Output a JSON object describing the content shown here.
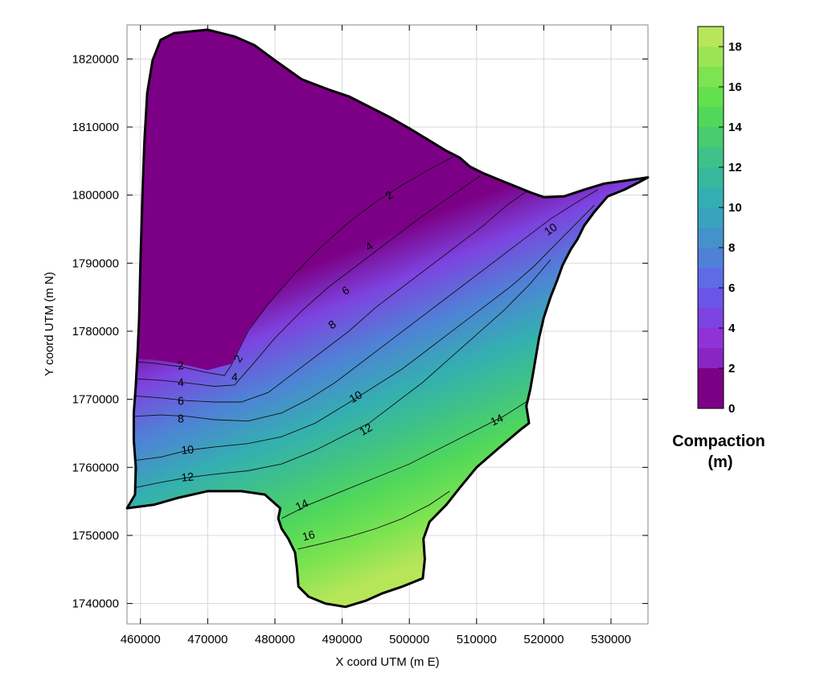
{
  "chart_data": {
    "type": "contour",
    "xlabel": "X coord UTM (m E)",
    "ylabel": "Y coord UTM (m N)",
    "xlim": [
      458000,
      535500
    ],
    "ylim": [
      1737000,
      1825000
    ],
    "x_ticks": [
      460000,
      470000,
      480000,
      490000,
      500000,
      510000,
      520000,
      530000
    ],
    "x_tick_labels": [
      "460000",
      "470000",
      "480000",
      "490000",
      "500000",
      "510000",
      "520000",
      "530000"
    ],
    "y_ticks": [
      1740000,
      1750000,
      1760000,
      1770000,
      1780000,
      1790000,
      1800000,
      1810000,
      1820000
    ],
    "y_tick_labels": [
      "1740000",
      "1750000",
      "1760000",
      "1770000",
      "1780000",
      "1790000",
      "1800000",
      "1810000",
      "1820000"
    ],
    "colorbar": {
      "title_line1": "Compaction",
      "title_line2": "(m)",
      "min": 0,
      "max": 19,
      "levels": [
        0,
        1,
        2,
        3,
        4,
        5,
        6,
        7,
        8,
        9,
        10,
        11,
        12,
        13,
        14,
        15,
        16,
        17,
        18,
        19
      ],
      "tick_values": [
        0,
        2,
        4,
        6,
        8,
        10,
        12,
        14,
        16,
        18
      ],
      "tick_labels": [
        "0",
        "2",
        "4",
        "6",
        "8",
        "10",
        "12",
        "14",
        "16",
        "18"
      ],
      "colors": [
        "#7c0086",
        "#7c0086",
        "#8a25c2",
        "#8f33d8",
        "#7d43e0",
        "#6a55e8",
        "#5d6ce6",
        "#4f82d6",
        "#4392c9",
        "#39a3be",
        "#34afb1",
        "#38b89c",
        "#3fc287",
        "#47cc70",
        "#51d85a",
        "#63e04e",
        "#7ee350",
        "#9be555",
        "#b8e65a",
        "#d4e463"
      ]
    },
    "boundary": [
      [
        458000,
        1754000
      ],
      [
        459200,
        1756000
      ],
      [
        459300,
        1760000
      ],
      [
        459000,
        1764000
      ],
      [
        459000,
        1768000
      ],
      [
        459300,
        1772000
      ],
      [
        459600,
        1777500
      ],
      [
        459800,
        1782000
      ],
      [
        460000,
        1790000
      ],
      [
        460300,
        1800000
      ],
      [
        460600,
        1808000
      ],
      [
        461000,
        1815000
      ],
      [
        461800,
        1819800
      ],
      [
        463000,
        1822800
      ],
      [
        465000,
        1823800
      ],
      [
        470000,
        1824300
      ],
      [
        474000,
        1823300
      ],
      [
        477000,
        1822000
      ],
      [
        480000,
        1819800
      ],
      [
        484000,
        1817000
      ],
      [
        488000,
        1815500
      ],
      [
        491000,
        1814500
      ],
      [
        494000,
        1813000
      ],
      [
        497000,
        1811500
      ],
      [
        500000,
        1809800
      ],
      [
        503000,
        1808000
      ],
      [
        505500,
        1806500
      ],
      [
        507500,
        1805500
      ],
      [
        509000,
        1804200
      ],
      [
        510800,
        1803300
      ],
      [
        514000,
        1802000
      ],
      [
        518000,
        1800400
      ],
      [
        520000,
        1799700
      ],
      [
        523000,
        1799800
      ],
      [
        526000,
        1800800
      ],
      [
        529000,
        1801700
      ],
      [
        532000,
        1802100
      ],
      [
        535500,
        1802600
      ],
      [
        534000,
        1801800
      ],
      [
        532000,
        1800800
      ],
      [
        529500,
        1799800
      ],
      [
        527500,
        1797500
      ],
      [
        526000,
        1795500
      ],
      [
        525000,
        1793500
      ],
      [
        524000,
        1792000
      ],
      [
        522800,
        1789700
      ],
      [
        522000,
        1787500
      ],
      [
        521000,
        1785000
      ],
      [
        520000,
        1782000
      ],
      [
        519300,
        1779000
      ],
      [
        518700,
        1775500
      ],
      [
        518000,
        1771500
      ],
      [
        517400,
        1769000
      ],
      [
        517800,
        1766500
      ],
      [
        516500,
        1765500
      ],
      [
        513500,
        1763000
      ],
      [
        510000,
        1760000
      ],
      [
        507500,
        1757000
      ],
      [
        505500,
        1754500
      ],
      [
        503000,
        1752000
      ],
      [
        502100,
        1749500
      ],
      [
        502300,
        1746500
      ],
      [
        502000,
        1743700
      ],
      [
        499000,
        1742500
      ],
      [
        496000,
        1741500
      ],
      [
        493500,
        1740400
      ],
      [
        490500,
        1739500
      ],
      [
        487500,
        1740000
      ],
      [
        485000,
        1741000
      ],
      [
        483500,
        1742500
      ],
      [
        483300,
        1745000
      ],
      [
        483000,
        1747500
      ],
      [
        482000,
        1749500
      ],
      [
        481000,
        1751000
      ],
      [
        480500,
        1752500
      ],
      [
        480800,
        1754000
      ],
      [
        478500,
        1756000
      ],
      [
        475000,
        1756500
      ],
      [
        470000,
        1756500
      ],
      [
        465500,
        1755500
      ],
      [
        462000,
        1754500
      ],
      [
        458000,
        1754000
      ]
    ],
    "contour_lines": [
      {
        "level": 2,
        "points": [
          [
            459500,
            1775500
          ],
          [
            462000,
            1775300
          ],
          [
            466000,
            1774800
          ],
          [
            470000,
            1773900
          ],
          [
            472500,
            1773500
          ],
          [
            473500,
            1775000
          ],
          [
            476000,
            1780000
          ],
          [
            479000,
            1784000
          ],
          [
            483000,
            1788500
          ],
          [
            487000,
            1792500
          ],
          [
            491000,
            1796000
          ],
          [
            495000,
            1799000
          ],
          [
            499000,
            1801500
          ],
          [
            503000,
            1803800
          ],
          [
            506500,
            1805600
          ]
        ]
      },
      {
        "level": 4,
        "points": [
          [
            459400,
            1773000
          ],
          [
            463000,
            1772800
          ],
          [
            467000,
            1772400
          ],
          [
            471000,
            1771900
          ],
          [
            474000,
            1772100
          ],
          [
            477000,
            1775500
          ],
          [
            480000,
            1779000
          ],
          [
            484000,
            1783000
          ],
          [
            488000,
            1786500
          ],
          [
            492000,
            1789500
          ],
          [
            496000,
            1792500
          ],
          [
            500000,
            1795500
          ],
          [
            503500,
            1798000
          ],
          [
            507000,
            1800400
          ],
          [
            510500,
            1802800
          ]
        ]
      },
      {
        "level": 6,
        "points": [
          [
            459300,
            1770500
          ],
          [
            463000,
            1770200
          ],
          [
            467000,
            1769800
          ],
          [
            471000,
            1769600
          ],
          [
            475000,
            1769600
          ],
          [
            479000,
            1771000
          ],
          [
            483000,
            1774000
          ],
          [
            487000,
            1777000
          ],
          [
            491000,
            1780000
          ],
          [
            495000,
            1783500
          ],
          [
            499000,
            1786500
          ],
          [
            503000,
            1789500
          ],
          [
            507000,
            1792500
          ],
          [
            511000,
            1795500
          ],
          [
            514500,
            1798500
          ],
          [
            517500,
            1800600
          ]
        ]
      },
      {
        "level": 8,
        "points": [
          [
            459200,
            1767500
          ],
          [
            463000,
            1767700
          ],
          [
            467000,
            1767500
          ],
          [
            471000,
            1767000
          ],
          [
            476000,
            1766800
          ],
          [
            481000,
            1768000
          ],
          [
            485000,
            1770000
          ],
          [
            489000,
            1772500
          ],
          [
            493000,
            1775500
          ],
          [
            497000,
            1778500
          ],
          [
            501000,
            1781500
          ],
          [
            505000,
            1784500
          ],
          [
            509000,
            1787500
          ],
          [
            513000,
            1790500
          ],
          [
            517000,
            1793500
          ],
          [
            521000,
            1796500
          ],
          [
            525000,
            1799000
          ],
          [
            528000,
            1800800
          ]
        ]
      },
      {
        "level": 10,
        "points": [
          [
            459000,
            1761000
          ],
          [
            463000,
            1761500
          ],
          [
            467000,
            1762500
          ],
          [
            471000,
            1763000
          ],
          [
            476000,
            1763500
          ],
          [
            481000,
            1764500
          ],
          [
            486000,
            1766500
          ],
          [
            491000,
            1769500
          ],
          [
            495000,
            1772000
          ],
          [
            499000,
            1774500
          ],
          [
            503000,
            1777500
          ],
          [
            507000,
            1780500
          ],
          [
            511000,
            1783500
          ],
          [
            515000,
            1786500
          ],
          [
            518500,
            1789500
          ],
          [
            521500,
            1792500
          ],
          [
            524500,
            1795500
          ],
          [
            527500,
            1798500
          ]
        ]
      },
      {
        "level": 12,
        "points": [
          [
            459100,
            1757000
          ],
          [
            463000,
            1757800
          ],
          [
            467000,
            1758500
          ],
          [
            471000,
            1759000
          ],
          [
            476000,
            1759500
          ],
          [
            481000,
            1760500
          ],
          [
            486000,
            1762500
          ],
          [
            490000,
            1764500
          ],
          [
            494000,
            1766500
          ],
          [
            498000,
            1769500
          ],
          [
            502000,
            1772500
          ],
          [
            506000,
            1776000
          ],
          [
            510000,
            1779500
          ],
          [
            514000,
            1783000
          ],
          [
            518000,
            1787000
          ],
          [
            521000,
            1790500
          ]
        ]
      },
      {
        "level": 14,
        "points": [
          [
            481000,
            1752500
          ],
          [
            485000,
            1754500
          ],
          [
            490000,
            1756500
          ],
          [
            495000,
            1758500
          ],
          [
            500000,
            1760500
          ],
          [
            505000,
            1763000
          ],
          [
            510000,
            1765500
          ],
          [
            514000,
            1767500
          ],
          [
            518000,
            1770000
          ]
        ]
      },
      {
        "level": 16,
        "points": [
          [
            483400,
            1748000
          ],
          [
            487000,
            1748800
          ],
          [
            491000,
            1749800
          ],
          [
            495000,
            1751000
          ],
          [
            499000,
            1752500
          ],
          [
            503000,
            1754500
          ],
          [
            506000,
            1756500
          ]
        ]
      }
    ],
    "contour_labels": [
      {
        "text": "2",
        "x": 466000,
        "y": 1775000,
        "angle": -5
      },
      {
        "text": "2",
        "x": 474500,
        "y": 1776000,
        "angle": -60
      },
      {
        "text": "2",
        "x": 497000,
        "y": 1800000,
        "angle": -35
      },
      {
        "text": "4",
        "x": 466000,
        "y": 1772500,
        "angle": -3
      },
      {
        "text": "4",
        "x": 474000,
        "y": 1773300,
        "angle": 0
      },
      {
        "text": "4",
        "x": 494000,
        "y": 1792500,
        "angle": -35
      },
      {
        "text": "6",
        "x": 466000,
        "y": 1769800,
        "angle": -2
      },
      {
        "text": "6",
        "x": 490500,
        "y": 1786000,
        "angle": -35
      },
      {
        "text": "8",
        "x": 466000,
        "y": 1767200,
        "angle": -2
      },
      {
        "text": "8",
        "x": 488500,
        "y": 1781000,
        "angle": -35
      },
      {
        "text": "10",
        "x": 467000,
        "y": 1762600,
        "angle": -5
      },
      {
        "text": "10",
        "x": 492000,
        "y": 1770400,
        "angle": -30
      },
      {
        "text": "10",
        "x": 521000,
        "y": 1795000,
        "angle": -35
      },
      {
        "text": "12",
        "x": 467000,
        "y": 1758600,
        "angle": -5
      },
      {
        "text": "12",
        "x": 493500,
        "y": 1765600,
        "angle": -30
      },
      {
        "text": "14",
        "x": 484000,
        "y": 1754500,
        "angle": -25
      },
      {
        "text": "14",
        "x": 513000,
        "y": 1767000,
        "angle": -25
      },
      {
        "text": "16",
        "x": 485000,
        "y": 1750000,
        "angle": -15
      }
    ]
  }
}
